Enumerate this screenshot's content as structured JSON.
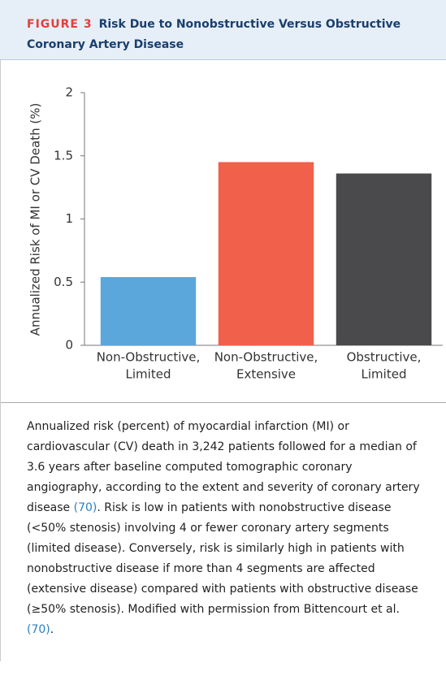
{
  "header": {
    "label": "FIGURE 3",
    "title": "Risk Due to Nonobstructive Versus Obstructive Coronary Artery Disease"
  },
  "chart_data": {
    "type": "bar",
    "ylabel": "Annualized Risk of MI or CV Death (%)",
    "categories": [
      "Non-Obstructive,\nLimited",
      "Non-Obstructive,\nExtensive",
      "Obstructive,\nLimited"
    ],
    "values": [
      0.54,
      1.45,
      1.36
    ],
    "colors": [
      "#5ba7dc",
      "#f0604a",
      "#4a4a4c"
    ],
    "ylim": [
      0,
      2
    ],
    "yticks": [
      0,
      0.5,
      1,
      1.5,
      2
    ],
    "grid": false
  },
  "caption": {
    "runs": [
      {
        "text": "Annualized risk (percent) of myocardial infarction (MI) or cardiovascular (CV) death in 3,242 patients followed for a median of 3.6 years after baseline computed tomographic coronary angiography, according to the extent and severity of coronary artery disease ",
        "link": false
      },
      {
        "text": "(70)",
        "link": true
      },
      {
        "text": ". Risk is low in patients with nonobstructive disease (<50% stenosis) involving 4 or fewer coronary artery segments (limited disease). Conversely, risk is similarly high in patients with nonobstructive disease if more than 4 segments are affected (extensive disease) compared with patients with obstructive disease (≥50% stenosis). Modified with permission from Bittencourt et al. ",
        "link": false
      },
      {
        "text": "(70)",
        "link": true
      },
      {
        "text": ".",
        "link": false
      }
    ]
  }
}
